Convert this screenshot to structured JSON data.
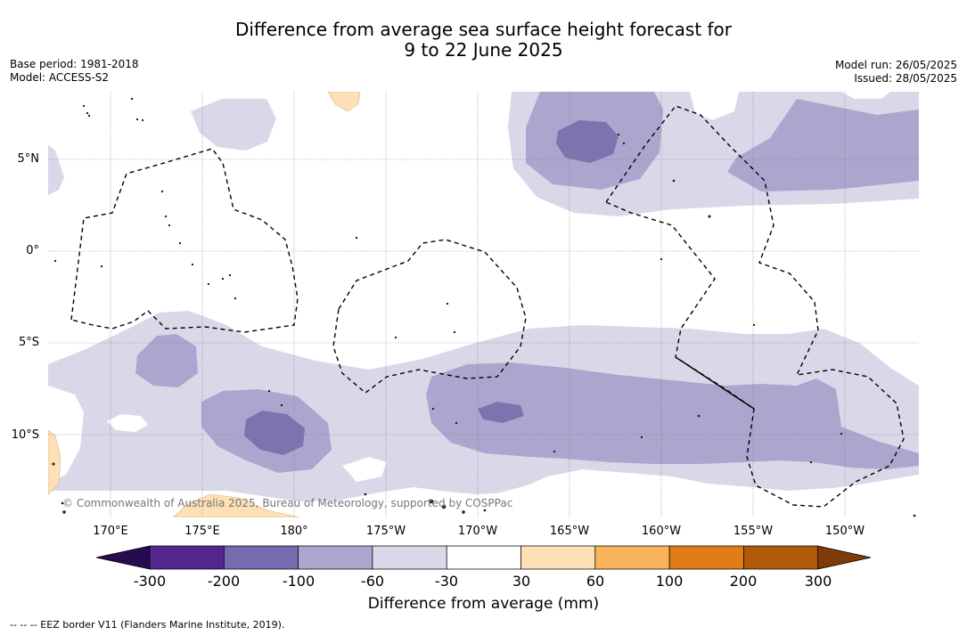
{
  "title_line1": "Difference from average sea surface height forecast for",
  "title_line2": "9 to 22 June 2025",
  "base_period": "Base period: 1981-2018",
  "model": "Model: ACCESS-S2",
  "model_run": "Model run: 26/05/2025",
  "issued": "Issued: 28/05/2025",
  "lat_labels": [
    "5°N",
    "0°",
    "5°S",
    "10°S"
  ],
  "lon_labels": [
    "170°E",
    "175°E",
    "180°",
    "175°W",
    "170°W",
    "165°W",
    "160°W",
    "155°W",
    "150°W"
  ],
  "colorbar": {
    "ticks": [
      "-300",
      "-200",
      "-100",
      "-60",
      "-30",
      "30",
      "60",
      "100",
      "200",
      "300"
    ],
    "colors": [
      "#270a4f",
      "#54278f",
      "#756bb1",
      "#aea5cf",
      "#d8d8e9",
      "#ffffff",
      "#fde0b6",
      "#f9b45b",
      "#de7d16",
      "#b15a09",
      "#7f3b08"
    ],
    "label": "Difference from average (mm)"
  },
  "copyright": "© Commonwealth of Australia 2025, Bureau of Meteorology, supported by COSPPac",
  "eez_note": "--  --  -- EEZ border V11 (Flanders Marine Institute, 2019)."
}
